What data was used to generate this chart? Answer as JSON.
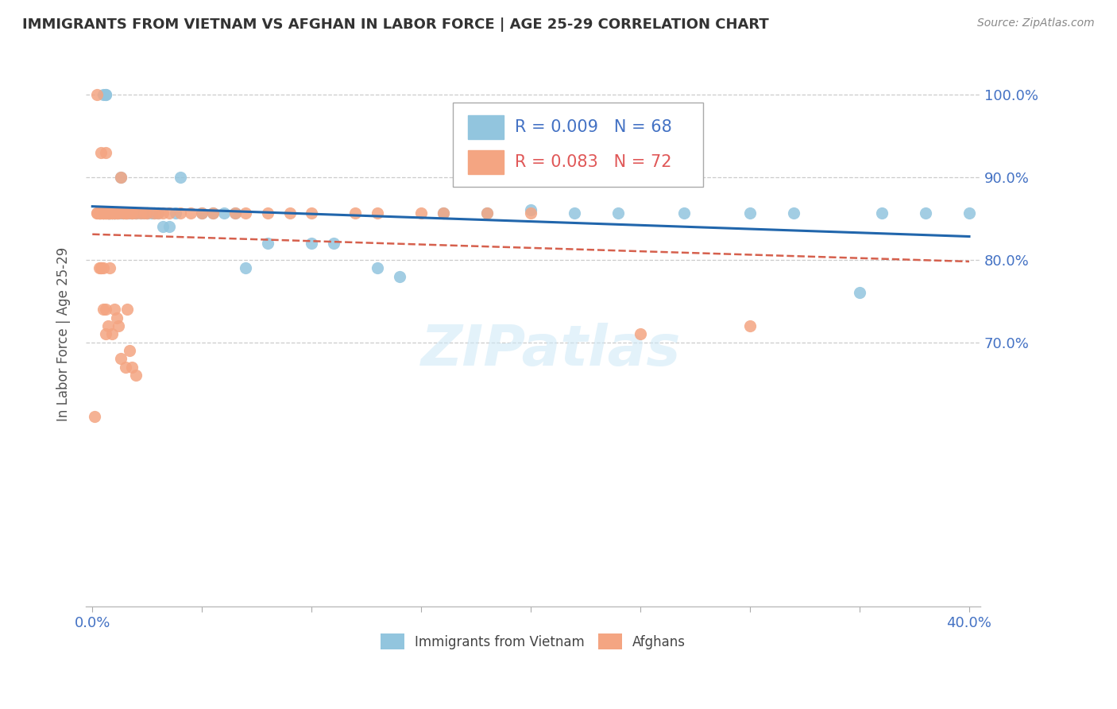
{
  "title": "IMMIGRANTS FROM VIETNAM VS AFGHAN IN LABOR FORCE | AGE 25-29 CORRELATION CHART",
  "source": "Source: ZipAtlas.com",
  "ylabel": "In Labor Force | Age 25-29",
  "xlim": [
    -0.003,
    0.405
  ],
  "ylim": [
    0.38,
    1.04
  ],
  "color_vietnam": "#92c5de",
  "color_afghan": "#f4a582",
  "trendline_color_vietnam": "#2166ac",
  "trendline_color_afghan": "#d6604d",
  "legend_r_vietnam": "0.009",
  "legend_n_vietnam": "68",
  "legend_r_afghan": "0.083",
  "legend_n_afghan": "72",
  "watermark": "ZIPatlas",
  "background_color": "#ffffff",
  "grid_color": "#cccccc",
  "ytick_vals": [
    0.7,
    0.8,
    0.9,
    1.0
  ],
  "ytick_labels": [
    "70.0%",
    "80.0%",
    "90.0%",
    "100.0%"
  ],
  "xtick_vals": [
    0.0,
    0.05,
    0.1,
    0.15,
    0.2,
    0.25,
    0.3,
    0.35,
    0.4
  ],
  "xtick_labels": [
    "0.0%",
    "",
    "",
    "",
    "",
    "",
    "",
    "",
    "40.0%"
  ],
  "viet_x": [
    0.005,
    0.005,
    0.006,
    0.006,
    0.006,
    0.007,
    0.007,
    0.007,
    0.008,
    0.008,
    0.008,
    0.009,
    0.009,
    0.009,
    0.01,
    0.01,
    0.01,
    0.01,
    0.011,
    0.011,
    0.012,
    0.012,
    0.013,
    0.013,
    0.014,
    0.014,
    0.015,
    0.015,
    0.016,
    0.016,
    0.017,
    0.018,
    0.018,
    0.02,
    0.02,
    0.022,
    0.023,
    0.025,
    0.025,
    0.027,
    0.028,
    0.03,
    0.032,
    0.035,
    0.038,
    0.04,
    0.05,
    0.055,
    0.06,
    0.065,
    0.07,
    0.08,
    0.1,
    0.11,
    0.13,
    0.14,
    0.16,
    0.18,
    0.2,
    0.22,
    0.24,
    0.27,
    0.3,
    0.32,
    0.35,
    0.36,
    0.38,
    0.4
  ],
  "viet_y": [
    0.857,
    1.0,
    1.0,
    1.0,
    0.857,
    0.857,
    0.857,
    0.857,
    0.857,
    0.857,
    0.857,
    0.857,
    0.857,
    0.857,
    0.857,
    0.857,
    0.857,
    0.857,
    0.857,
    0.857,
    0.857,
    0.857,
    0.857,
    0.9,
    0.857,
    0.857,
    0.857,
    0.857,
    0.857,
    0.857,
    0.857,
    0.857,
    0.857,
    0.857,
    0.857,
    0.857,
    0.857,
    0.857,
    0.857,
    0.857,
    0.857,
    0.857,
    0.84,
    0.84,
    0.857,
    0.9,
    0.857,
    0.857,
    0.857,
    0.857,
    0.79,
    0.82,
    0.82,
    0.82,
    0.79,
    0.78,
    0.857,
    0.857,
    0.86,
    0.857,
    0.857,
    0.857,
    0.857,
    0.857,
    0.76,
    0.857,
    0.857,
    0.857
  ],
  "afgh_x": [
    0.001,
    0.002,
    0.002,
    0.002,
    0.003,
    0.003,
    0.003,
    0.003,
    0.003,
    0.004,
    0.004,
    0.004,
    0.004,
    0.005,
    0.005,
    0.005,
    0.005,
    0.005,
    0.006,
    0.006,
    0.006,
    0.006,
    0.006,
    0.007,
    0.007,
    0.007,
    0.007,
    0.008,
    0.008,
    0.008,
    0.008,
    0.009,
    0.009,
    0.009,
    0.01,
    0.01,
    0.01,
    0.011,
    0.011,
    0.012,
    0.013,
    0.014,
    0.015,
    0.015,
    0.016,
    0.018,
    0.018,
    0.02,
    0.022,
    0.024,
    0.025,
    0.028,
    0.03,
    0.032,
    0.035,
    0.04,
    0.045,
    0.05,
    0.055,
    0.065,
    0.07,
    0.08,
    0.09,
    0.1,
    0.12,
    0.13,
    0.15,
    0.16,
    0.18,
    0.2,
    0.25,
    0.3
  ],
  "afgh_y": [
    0.61,
    0.857,
    0.857,
    1.0,
    0.857,
    0.857,
    0.857,
    0.857,
    0.857,
    0.857,
    0.857,
    0.857,
    0.93,
    0.857,
    0.857,
    0.857,
    0.857,
    0.857,
    0.857,
    0.857,
    0.857,
    0.93,
    0.857,
    0.857,
    0.857,
    0.857,
    0.857,
    0.857,
    0.857,
    0.857,
    0.857,
    0.857,
    0.857,
    0.857,
    0.857,
    0.857,
    0.857,
    0.857,
    0.857,
    0.857,
    0.9,
    0.857,
    0.857,
    0.857,
    0.857,
    0.857,
    0.857,
    0.857,
    0.857,
    0.857,
    0.857,
    0.857,
    0.857,
    0.857,
    0.857,
    0.857,
    0.857,
    0.857,
    0.857,
    0.857,
    0.857,
    0.857,
    0.857,
    0.857,
    0.857,
    0.857,
    0.857,
    0.857,
    0.857,
    0.857,
    0.71,
    0.72
  ],
  "afgh_x2": [
    0.003,
    0.004,
    0.004,
    0.005,
    0.005,
    0.006,
    0.006,
    0.007,
    0.008,
    0.009,
    0.01,
    0.011,
    0.012,
    0.013,
    0.015,
    0.016,
    0.017,
    0.018,
    0.02
  ],
  "afgh_y2": [
    0.79,
    0.79,
    0.79,
    0.79,
    0.74,
    0.74,
    0.71,
    0.72,
    0.79,
    0.71,
    0.74,
    0.73,
    0.72,
    0.68,
    0.67,
    0.74,
    0.69,
    0.67,
    0.66
  ]
}
